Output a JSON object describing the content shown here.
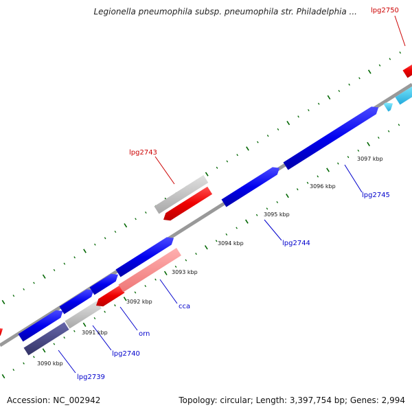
{
  "title": "Legionella pneumophila subsp. pneumophila str. Philadelphia ...",
  "footer": {
    "accession": "Accession: NC_002942",
    "topology": "Topology: circular; Length: 3,397,754 bp; Genes: 2,994"
  },
  "ticks": [
    {
      "label": "3090 kbp"
    },
    {
      "label": "3091 kbp"
    },
    {
      "label": "3092 kbp"
    },
    {
      "label": "3093 kbp"
    },
    {
      "label": "3094 kbp"
    },
    {
      "label": "3095 kbp"
    },
    {
      "label": "3096 kbp"
    },
    {
      "label": "3097 kbp"
    }
  ],
  "gene_labels": [
    {
      "name": "lpg2739",
      "color": "#0000cc"
    },
    {
      "name": "lpg2740",
      "color": "#0000cc"
    },
    {
      "name": "orn",
      "color": "#0000cc"
    },
    {
      "name": "cca",
      "color": "#0000cc"
    },
    {
      "name": "lpg2744",
      "color": "#0000cc"
    },
    {
      "name": "lpg2745",
      "color": "#0000cc"
    },
    {
      "name": "lpg2743",
      "color": "#cc0000"
    },
    {
      "name": "lpg2750",
      "color": "#cc0000"
    }
  ],
  "colors": {
    "forward_gene": "#0000ee",
    "reverse_gene": "#ee0000",
    "highlight_blue": "#33ccee",
    "backbone": "#888888",
    "tick_green": "#006600"
  }
}
